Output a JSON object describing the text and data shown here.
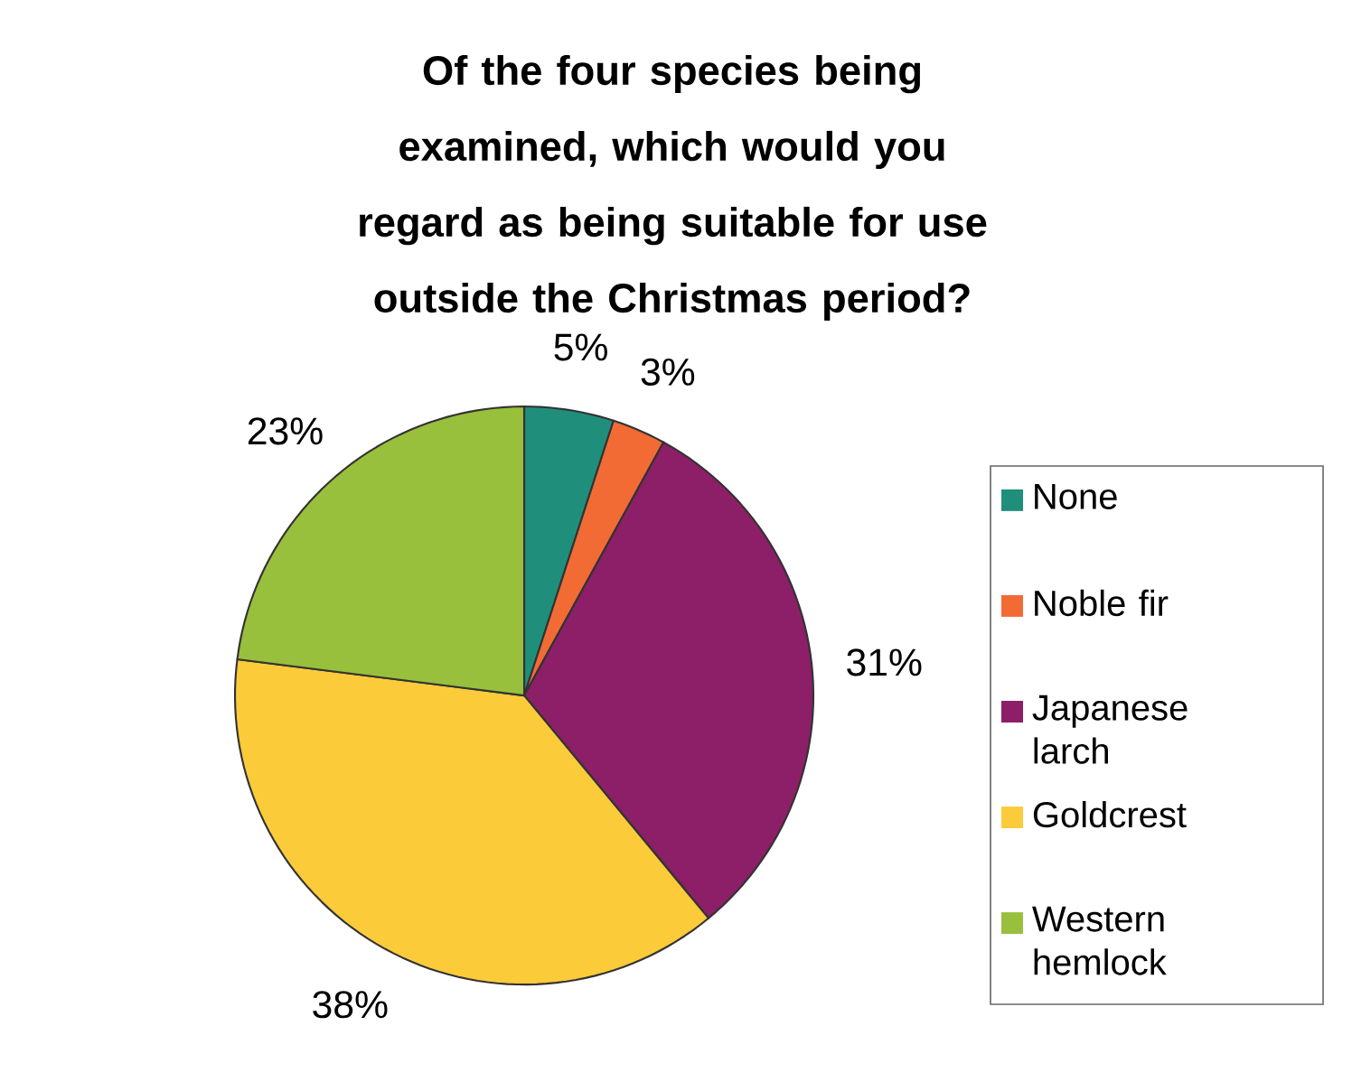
{
  "chart_data": {
    "type": "pie",
    "title": "Of the four species being examined, which would you regard as being suitable for use outside the Christmas period?",
    "categories": [
      "None",
      "Noble fir",
      "Japanese larch",
      "Goldcrest",
      "Western hemlock"
    ],
    "values": [
      5,
      3,
      31,
      38,
      23
    ],
    "value_labels": [
      "5%",
      "3%",
      "31%",
      "38%",
      "23%"
    ],
    "colors": [
      "#1f8f7c",
      "#f26b35",
      "#8c1f67",
      "#fccb3a",
      "#98c03c"
    ],
    "legend": "right"
  }
}
